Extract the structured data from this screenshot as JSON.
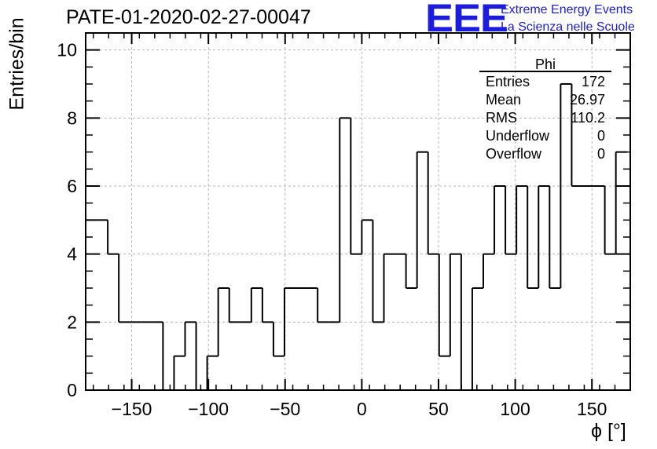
{
  "chart_data": {
    "type": "histogram",
    "title": "PATE-01-2020-02-27-00047",
    "xlabel": "ϕ [°]",
    "ylabel": "Entries/bin",
    "xlim": [
      -180,
      175
    ],
    "ylim": [
      0,
      10.5
    ],
    "bin_width": 7.2,
    "x_start": -180,
    "values": [
      5,
      5,
      4,
      2,
      2,
      2,
      2,
      0,
      1,
      2,
      0,
      1,
      3,
      2,
      2,
      3,
      2,
      1,
      3,
      3,
      3,
      2,
      2,
      8,
      4,
      5,
      2,
      4,
      4,
      3,
      7,
      4,
      1,
      4,
      0,
      3,
      4,
      6,
      4,
      6,
      3,
      6,
      3,
      9,
      6,
      6,
      6,
      4,
      7
    ],
    "xticks": [
      -150,
      -100,
      -50,
      0,
      50,
      100,
      150
    ],
    "xtick_labels": [
      "−150",
      "−100",
      "−50",
      "0",
      "50",
      "100",
      "150"
    ],
    "yticks": [
      0,
      2,
      4,
      6,
      8,
      10
    ],
    "ytick_labels": [
      "0",
      "2",
      "4",
      "6",
      "8",
      "10"
    ],
    "grid": true,
    "stats_box": {
      "title": "Phi",
      "rows": [
        {
          "label": "Entries",
          "value": "172"
        },
        {
          "label": "Mean",
          "value": "26.97"
        },
        {
          "label": "RMS",
          "value": "110.2"
        },
        {
          "label": "Underflow",
          "value": "0"
        },
        {
          "label": "Overflow",
          "value": "0"
        }
      ]
    }
  },
  "logo": {
    "mark": "EEE",
    "line1": "Extreme Energy Events",
    "line2": "La Scienza nelle Scuole"
  },
  "colors": {
    "histogram": "#000000",
    "grid": "#b4b4b4",
    "logo": "#1c1cdc"
  }
}
